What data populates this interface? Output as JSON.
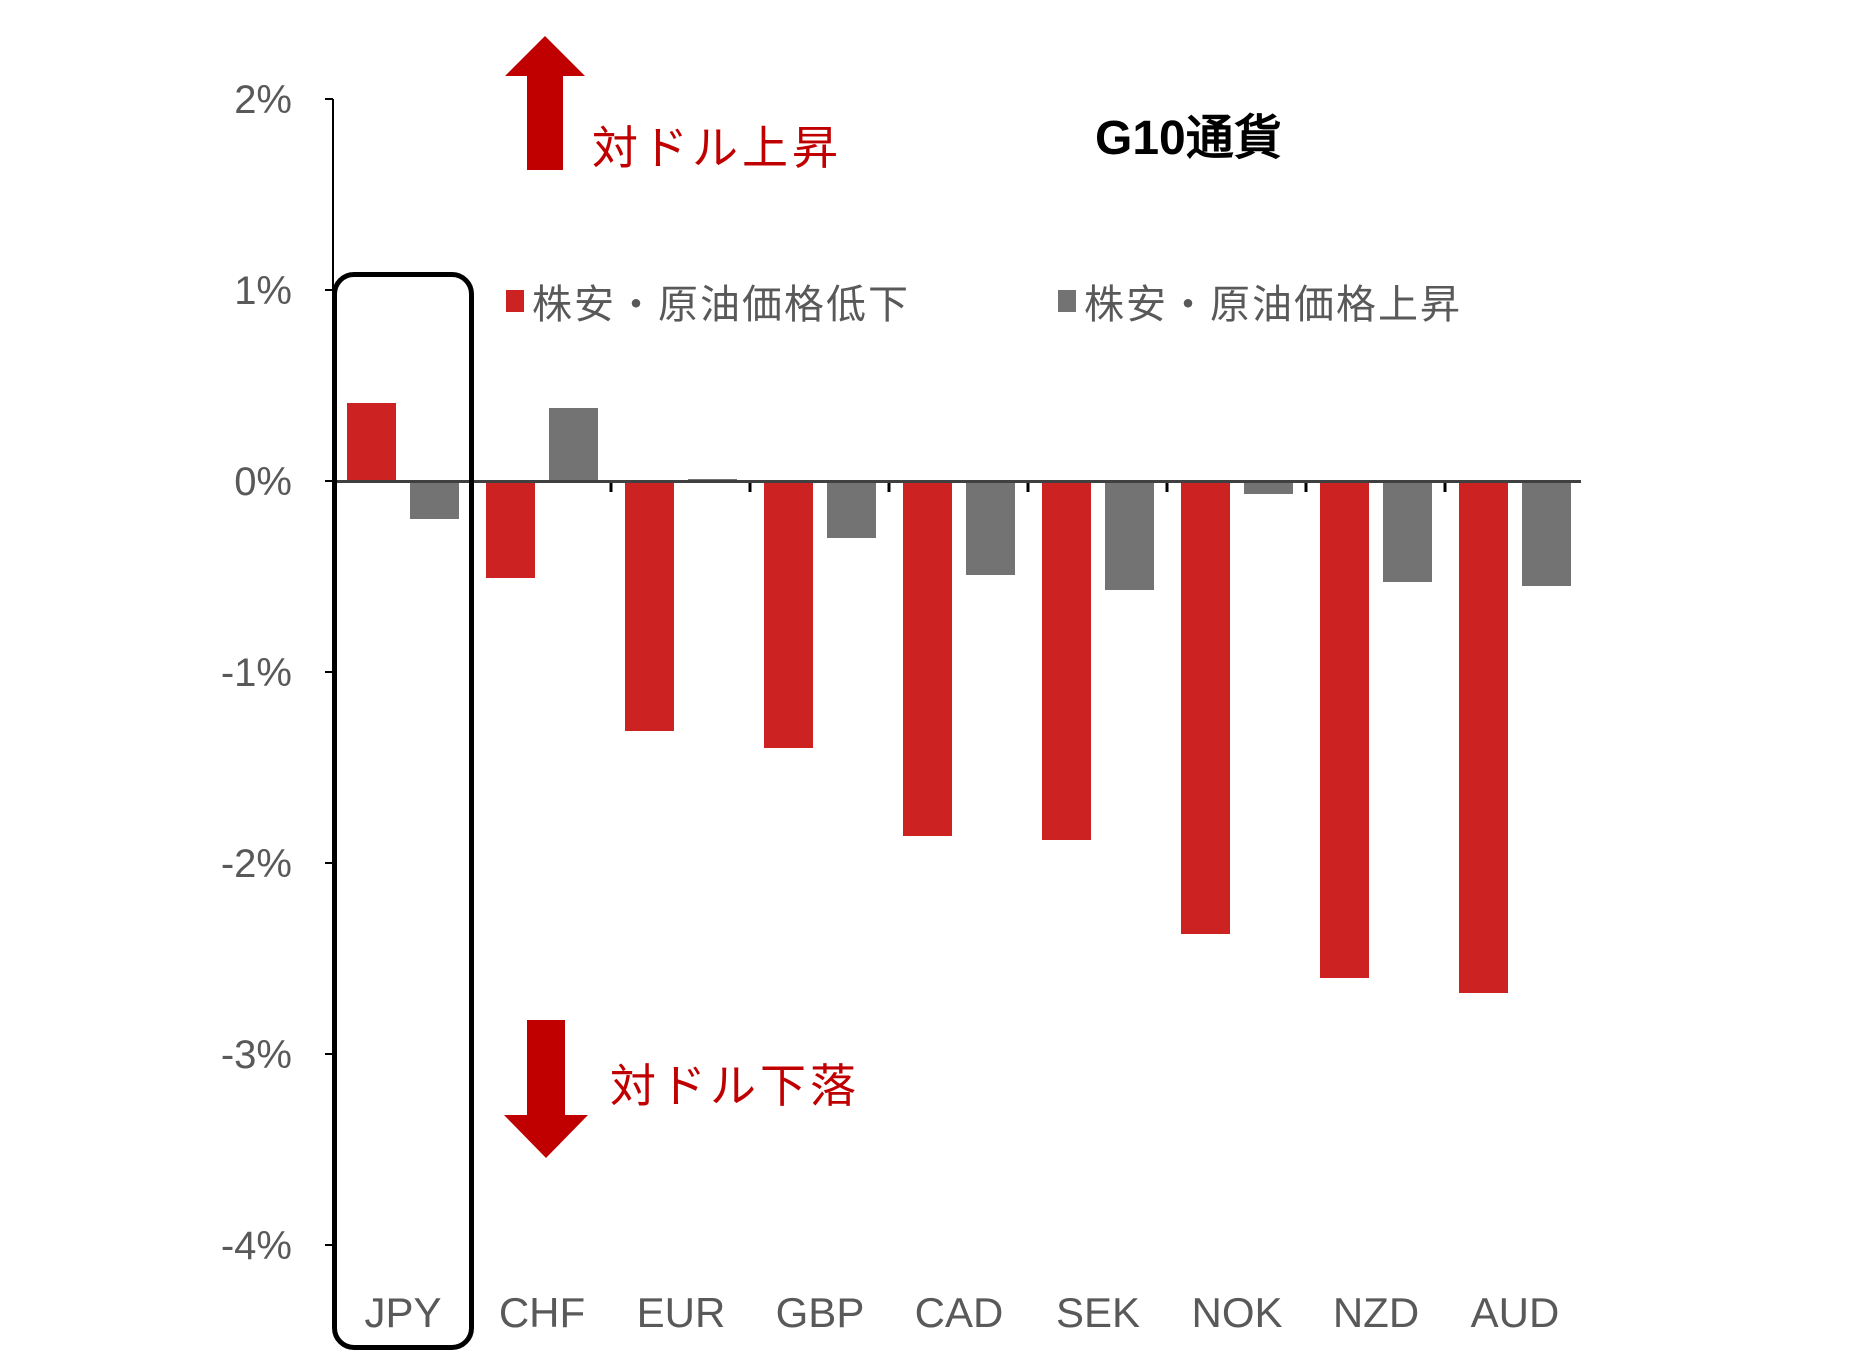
{
  "chart_data": {
    "type": "bar",
    "title": "G10通貨",
    "categories": [
      "JPY",
      "CHF",
      "EUR",
      "GBP",
      "CAD",
      "SEK",
      "NOK",
      "NZD",
      "AUD"
    ],
    "series": [
      {
        "name": "株安・原油価格低下",
        "color": "#cc2222",
        "values": [
          0.41,
          -0.51,
          -1.31,
          -1.4,
          -1.86,
          -1.88,
          -2.37,
          -2.6,
          -2.68
        ]
      },
      {
        "name": "株安・原油価格上昇",
        "color": "#737373",
        "values": [
          -0.2,
          0.38,
          0.01,
          -0.3,
          -0.49,
          -0.57,
          -0.07,
          -0.53,
          -0.55
        ]
      }
    ],
    "xlabel": "",
    "ylabel": "",
    "ylim": [
      -4,
      2
    ],
    "yticks": [
      "2%",
      "1%",
      "0%",
      "-1%",
      "-2%",
      "-3%",
      "-4%"
    ],
    "legend_position": "top",
    "grid": false,
    "annotations": [
      {
        "text": "対ドル上昇",
        "arrow": "up",
        "color": "#c00000"
      },
      {
        "text": "対ドル下落",
        "arrow": "down",
        "color": "#c00000"
      }
    ],
    "highlight": "JPY"
  },
  "title": "G10通貨",
  "annotations": {
    "up_label": "対ドル上昇",
    "down_label": "対ドル下落"
  },
  "legend": {
    "series1": "株安・原油価格低下",
    "series2": "株安・原油価格上昇"
  },
  "yaxis": {
    "t2": "2%",
    "t1": "1%",
    "t0": "0%",
    "tm1": "-1%",
    "tm2": "-2%",
    "tm3": "-3%",
    "tm4": "-4%"
  },
  "xaxis": {
    "c0": "JPY",
    "c1": "CHF",
    "c2": "EUR",
    "c3": "GBP",
    "c4": "CAD",
    "c5": "SEK",
    "c6": "NOK",
    "c7": "NZD",
    "c8": "AUD"
  }
}
